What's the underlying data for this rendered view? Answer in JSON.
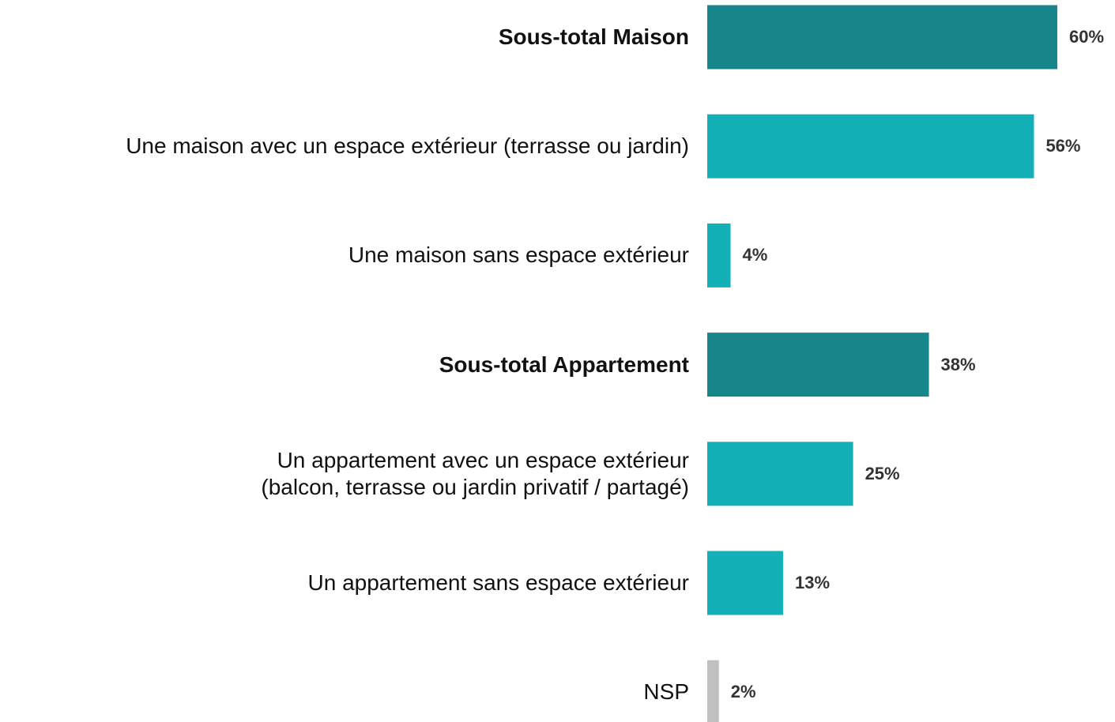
{
  "chart_data": {
    "type": "bar",
    "orientation": "horizontal",
    "categories": [
      "Sous-total Maison",
      "Une maison avec un espace extérieur (terrasse ou jardin)",
      "Une maison sans espace extérieur",
      "Sous-total Appartement",
      "Un appartement avec un espace extérieur\n(balcon, terrasse ou jardin privatif / partagé)",
      "Un appartement sans espace extérieur",
      "NSP"
    ],
    "values": [
      60,
      56,
      4,
      38,
      25,
      13,
      2
    ],
    "value_labels": [
      "60%",
      "56%",
      "4%",
      "38%",
      "25%",
      "13%",
      "2%"
    ],
    "colors": [
      "#17868b",
      "#14b0b8",
      "#14b0b8",
      "#17868b",
      "#14b0b8",
      "#14b0b8",
      "#c0c0c0"
    ],
    "emphasis": [
      true,
      false,
      false,
      true,
      false,
      false,
      false
    ]
  }
}
